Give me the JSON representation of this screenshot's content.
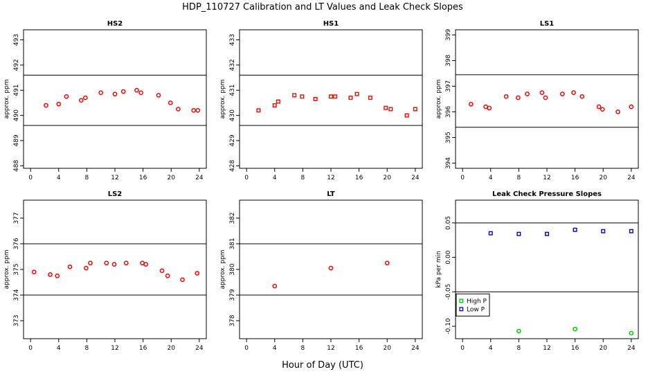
{
  "figure": {
    "title": "HDP_110727  Calibration and LT Values and Leak Check Slopes",
    "xlabel": "Hour of Day (UTC)"
  },
  "colors": {
    "cal_points": "#ff0000",
    "high_p": "#00cc00",
    "low_p": "#0000cc",
    "axes": "#000000"
  },
  "chart_data": [
    {
      "type": "scatter",
      "title": "HS2",
      "ylabel": "approx. ppm",
      "xlim": [
        -1,
        25
      ],
      "ylim": [
        487.9,
        493.4
      ],
      "xticks": [
        0,
        4,
        8,
        12,
        16,
        20,
        24
      ],
      "yticks": [
        488,
        489,
        490,
        491,
        492,
        493
      ],
      "hlines": [
        489.6,
        491.6
      ],
      "series": [
        {
          "marker": "circle",
          "color": "#ff0000",
          "x": [
            2.2,
            4.0,
            5.1,
            7.2,
            7.8,
            10.0,
            12.0,
            13.2,
            15.1,
            15.7,
            18.2,
            19.9,
            21.0,
            23.2,
            23.8
          ],
          "y": [
            490.4,
            490.45,
            490.75,
            490.6,
            490.7,
            490.9,
            490.85,
            490.95,
            491.0,
            490.9,
            490.8,
            490.5,
            490.25,
            490.2,
            490.2
          ]
        }
      ]
    },
    {
      "type": "scatter",
      "title": "HS1",
      "ylabel": "approx. ppm",
      "xlim": [
        -1,
        25
      ],
      "ylim": [
        427.9,
        433.4
      ],
      "xticks": [
        0,
        4,
        8,
        12,
        16,
        20,
        24
      ],
      "yticks": [
        428,
        429,
        430,
        431,
        432,
        433
      ],
      "hlines": [
        429.6,
        431.6
      ],
      "series": [
        {
          "marker": "square",
          "color": "#ff0000",
          "x": [
            1.7,
            4.0,
            4.5,
            6.8,
            7.9,
            9.8,
            12.0,
            12.6,
            14.8,
            15.7,
            17.6,
            19.8,
            20.5,
            22.8,
            24.0
          ],
          "y": [
            430.2,
            430.4,
            430.55,
            430.8,
            430.75,
            430.65,
            430.75,
            430.75,
            430.7,
            430.85,
            430.7,
            430.3,
            430.25,
            430.0,
            430.25
          ]
        }
      ]
    },
    {
      "type": "scatter",
      "title": "LS1",
      "ylabel": "approx. ppm",
      "xlim": [
        -1,
        25
      ],
      "ylim": [
        393.8,
        399.2
      ],
      "xticks": [
        0,
        4,
        8,
        12,
        16,
        20,
        24
      ],
      "yticks": [
        394,
        395,
        396,
        397,
        398,
        399
      ],
      "hlines": [
        395.4,
        397.45
      ],
      "series": [
        {
          "marker": "circle",
          "color": "#ff0000",
          "x": [
            1.2,
            3.3,
            3.8,
            6.2,
            7.9,
            9.2,
            11.3,
            11.8,
            14.2,
            15.8,
            17.0,
            19.4,
            19.9,
            22.1,
            24.0
          ],
          "y": [
            396.3,
            396.2,
            396.15,
            396.6,
            396.55,
            396.7,
            396.75,
            396.55,
            396.7,
            396.75,
            396.6,
            396.2,
            396.1,
            396.0,
            396.2
          ]
        }
      ]
    },
    {
      "type": "scatter",
      "title": "LS2",
      "ylabel": "approx. ppm",
      "xlim": [
        -1,
        25
      ],
      "ylim": [
        372.3,
        377.7
      ],
      "xticks": [
        0,
        4,
        8,
        12,
        16,
        20,
        24
      ],
      "yticks": [
        373,
        374,
        375,
        376,
        377
      ],
      "hlines": [
        374.0,
        376.0
      ],
      "series": [
        {
          "marker": "circle",
          "color": "#ff0000",
          "x": [
            0.5,
            2.8,
            3.8,
            5.6,
            7.9,
            8.5,
            10.8,
            11.9,
            13.6,
            15.9,
            16.4,
            18.7,
            19.5,
            21.6,
            23.7
          ],
          "y": [
            374.9,
            374.8,
            374.75,
            375.1,
            375.05,
            375.25,
            375.25,
            375.2,
            375.25,
            375.25,
            375.2,
            374.95,
            374.75,
            374.6,
            374.85
          ]
        }
      ]
    },
    {
      "type": "scatter",
      "title": "LT",
      "ylabel": "approx. ppm",
      "xlim": [
        -1,
        25
      ],
      "ylim": [
        377.3,
        382.7
      ],
      "xticks": [
        0,
        4,
        8,
        12,
        16,
        20,
        24
      ],
      "yticks": [
        378,
        379,
        380,
        381,
        382
      ],
      "hlines": [
        379.0,
        381.0
      ],
      "series": [
        {
          "marker": "circle",
          "color": "#ff0000",
          "x": [
            4.0,
            12.0,
            20.0
          ],
          "y": [
            379.35,
            380.05,
            380.25
          ]
        }
      ]
    },
    {
      "type": "scatter",
      "title": "Leak Check Pressure Slopes",
      "ylabel": "kPa per min",
      "xlim": [
        -1,
        25
      ],
      "ylim": [
        -0.118,
        0.083
      ],
      "xticks": [
        0,
        4,
        8,
        12,
        16,
        20,
        24
      ],
      "yticks": [
        -0.1,
        -0.05,
        0.0,
        0.05
      ],
      "ytick_labels": [
        "-0.10",
        "-0.05",
        "0.00",
        "0.05"
      ],
      "hlines": [
        -0.05,
        0.05
      ],
      "legend": {
        "position": "left",
        "entries": [
          "High P",
          "Low P"
        ]
      },
      "series": [
        {
          "name": "High P",
          "marker": "circle",
          "color": "#00cc00",
          "x": [
            8.0,
            16.0,
            24.0
          ],
          "y": [
            -0.107,
            -0.104,
            -0.11
          ]
        },
        {
          "name": "Low P",
          "marker": "square",
          "color": "#0000cc",
          "x": [
            4.0,
            8.0,
            12.0,
            16.0,
            20.0,
            24.0
          ],
          "y": [
            0.035,
            0.034,
            0.034,
            0.04,
            0.038,
            0.038
          ]
        }
      ]
    }
  ]
}
